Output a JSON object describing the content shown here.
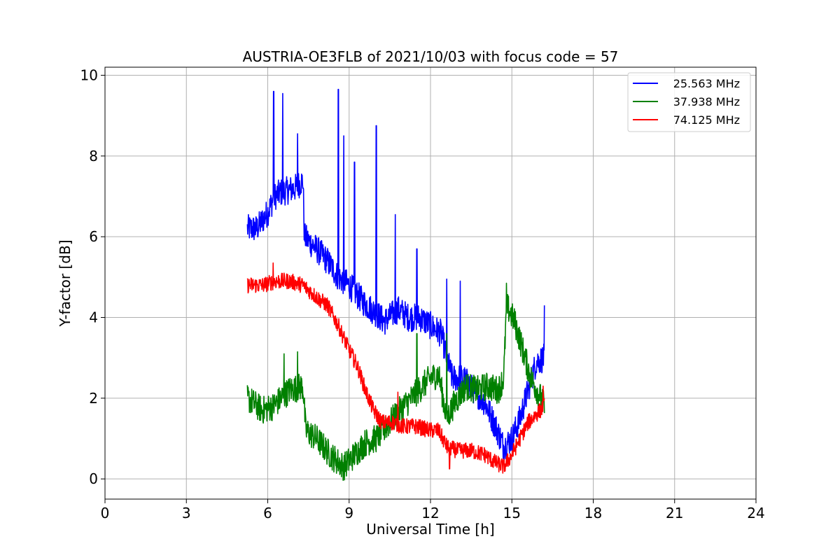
{
  "chart_data": {
    "type": "line",
    "title": "AUSTRIA-OE3FLB of 2021/10/03 with focus code = 57",
    "xlabel": "Universal Time [h]",
    "ylabel": "Y-factor [dB]",
    "xlim": [
      0,
      24
    ],
    "ylim": [
      -0.5,
      10.2
    ],
    "xticks": [
      0,
      3,
      6,
      9,
      12,
      15,
      18,
      21,
      24
    ],
    "yticks": [
      0,
      2,
      4,
      6,
      8,
      10
    ],
    "grid": true,
    "legend_position": "top-right",
    "series": [
      {
        "name": "25.563 MHz",
        "color": "#0000ff",
        "noise": 0.35,
        "x": [
          5.25,
          5.6,
          6.0,
          6.25,
          6.5,
          7.0,
          7.3,
          7.35,
          7.8,
          8.2,
          8.6,
          9.0,
          9.5,
          10.0,
          10.3,
          10.8,
          11.2,
          11.6,
          12.0,
          12.4,
          12.6,
          12.8,
          13.2,
          13.6,
          14.0,
          14.4,
          14.7,
          15.0,
          15.3,
          15.6,
          15.9,
          16.2
        ],
        "y": [
          6.2,
          6.2,
          6.6,
          7.0,
          7.1,
          7.2,
          7.4,
          6.0,
          5.7,
          5.4,
          5.0,
          4.8,
          4.4,
          4.1,
          3.9,
          4.2,
          4.0,
          4.0,
          3.8,
          3.6,
          3.0,
          2.5,
          2.5,
          2.2,
          1.9,
          1.3,
          0.8,
          1.0,
          1.5,
          2.2,
          2.9,
          3.0
        ],
        "spikes": [
          [
            6.22,
            9.6
          ],
          [
            6.55,
            9.55
          ],
          [
            7.1,
            8.55
          ],
          [
            8.6,
            9.65
          ],
          [
            8.8,
            8.5
          ],
          [
            9.2,
            7.85
          ],
          [
            10.0,
            8.75
          ],
          [
            10.7,
            6.55
          ],
          [
            11.5,
            5.7
          ],
          [
            12.6,
            4.95
          ],
          [
            13.1,
            4.9
          ],
          [
            16.2,
            4.3
          ]
        ]
      },
      {
        "name": "37.938 MHz",
        "color": "#008000",
        "noise": 0.35,
        "x": [
          5.25,
          5.8,
          6.2,
          6.8,
          7.3,
          7.4,
          7.8,
          8.3,
          8.8,
          9.2,
          9.6,
          10.0,
          10.5,
          11.0,
          11.3,
          11.7,
          12.0,
          12.3,
          12.6,
          12.9,
          13.3,
          13.7,
          14.1,
          14.5,
          14.7,
          14.8,
          15.1,
          15.4,
          15.7,
          16.0,
          16.2
        ],
        "y": [
          2.0,
          1.7,
          1.8,
          2.2,
          2.3,
          1.2,
          1.0,
          0.6,
          0.3,
          0.6,
          0.9,
          1.0,
          1.4,
          1.8,
          2.0,
          2.3,
          2.5,
          2.6,
          1.5,
          1.9,
          2.3,
          2.2,
          2.3,
          2.2,
          2.5,
          4.3,
          3.9,
          3.2,
          2.5,
          2.1,
          1.8
        ],
        "spikes": [
          [
            6.6,
            3.1
          ],
          [
            7.1,
            3.15
          ],
          [
            11.5,
            3.6
          ],
          [
            12.6,
            3.6
          ],
          [
            14.8,
            4.85
          ]
        ]
      },
      {
        "name": "74.125 MHz",
        "color": "#ff0000",
        "noise": 0.2,
        "x": [
          5.25,
          5.8,
          6.3,
          6.8,
          7.3,
          7.8,
          8.2,
          8.6,
          9.0,
          9.3,
          9.6,
          9.9,
          10.2,
          10.6,
          11.0,
          11.5,
          12.0,
          12.3,
          12.6,
          13.0,
          13.5,
          14.0,
          14.4,
          14.7,
          15.0,
          15.3,
          15.6,
          15.9,
          16.2
        ],
        "y": [
          4.8,
          4.8,
          4.9,
          4.9,
          4.8,
          4.5,
          4.3,
          3.8,
          3.2,
          2.8,
          2.2,
          1.7,
          1.4,
          1.4,
          1.3,
          1.3,
          1.2,
          1.2,
          0.8,
          0.7,
          0.7,
          0.6,
          0.4,
          0.3,
          0.6,
          1.0,
          1.4,
          1.6,
          1.8
        ],
        "spikes": [
          [
            6.2,
            5.35
          ],
          [
            10.8,
            2.15
          ],
          [
            12.7,
            0.25
          ],
          [
            16.15,
            2.3
          ]
        ]
      }
    ]
  }
}
